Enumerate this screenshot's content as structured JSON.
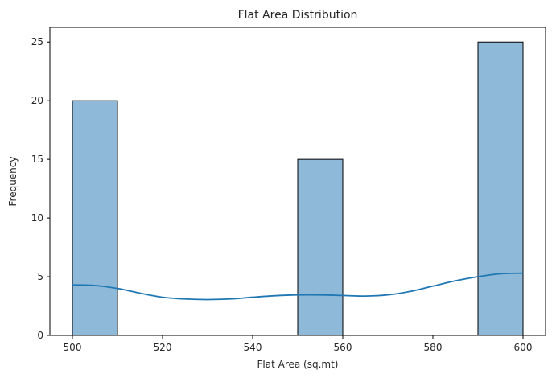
{
  "chart_data": {
    "type": "bar",
    "title": "Flat Area Distribution",
    "xlabel": "Flat Area (sq.mt)",
    "ylabel": "Frequency",
    "xlim": [
      495,
      605
    ],
    "ylim": [
      0,
      26.25
    ],
    "xticks": [
      500,
      520,
      540,
      560,
      580,
      600
    ],
    "yticks": [
      0,
      5,
      10,
      15,
      20,
      25
    ],
    "bins": [
      {
        "x0": 500,
        "x1": 510,
        "count": 20
      },
      {
        "x0": 550,
        "x1": 560,
        "count": 15
      },
      {
        "x0": 590,
        "x1": 600,
        "count": 25
      }
    ],
    "kde": {
      "x": [
        500,
        505,
        510,
        515,
        520,
        525,
        530,
        535,
        540,
        545,
        550,
        555,
        560,
        565,
        570,
        575,
        580,
        585,
        590,
        595,
        600
      ],
      "y": [
        4.3,
        4.25,
        4.0,
        3.6,
        3.25,
        3.1,
        3.05,
        3.1,
        3.25,
        3.38,
        3.45,
        3.45,
        3.4,
        3.35,
        3.45,
        3.75,
        4.2,
        4.65,
        5.0,
        5.25,
        5.3
      ]
    },
    "colors": {
      "bar_fill": "#8fb9d9",
      "bar_edge": "#000000",
      "kde_line": "#1f77b4"
    }
  }
}
